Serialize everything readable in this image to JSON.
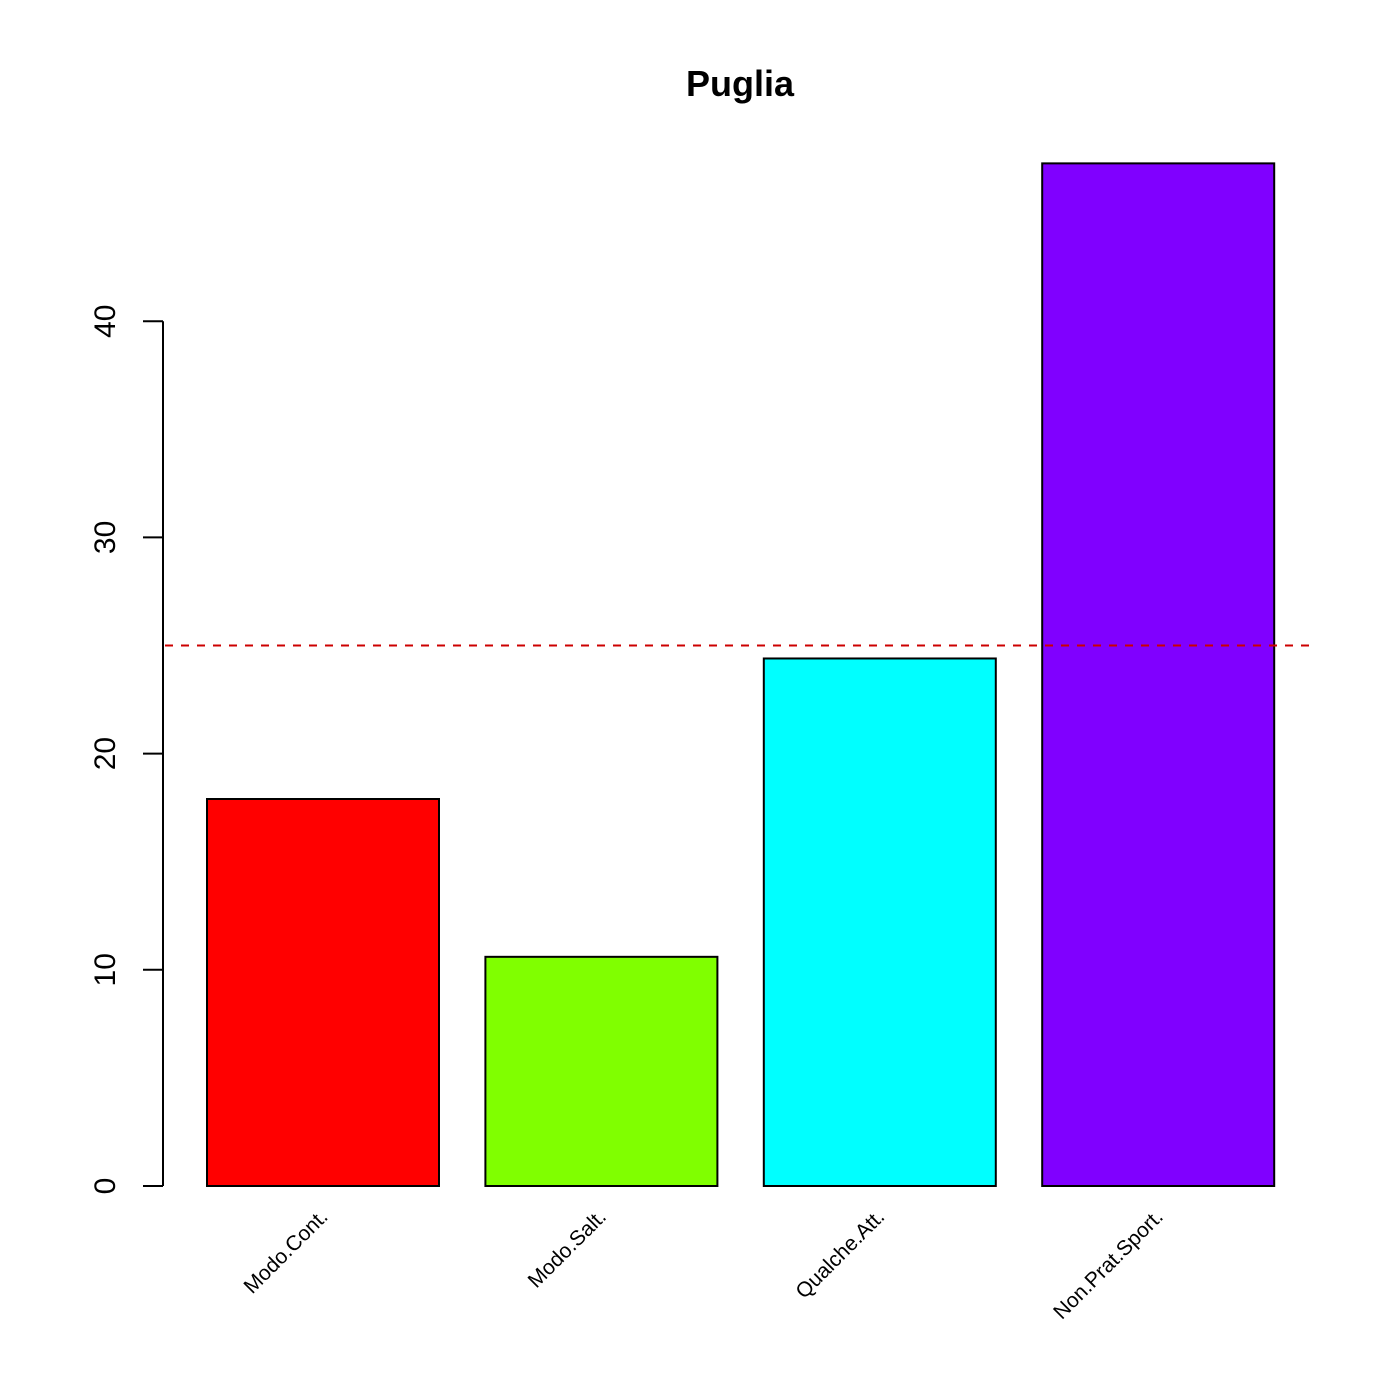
{
  "chart_data": {
    "type": "bar",
    "title": "Puglia",
    "xlabel": "",
    "ylabel": "",
    "categories": [
      "Modo.Cont.",
      "Modo.Salt.",
      "Qualche.Att.",
      "Non.Prat.Sport."
    ],
    "values": [
      17.9,
      10.6,
      24.4,
      47.3
    ],
    "colors": [
      "#FF0000",
      "#80FF00",
      "#00FFFF",
      "#8000FF"
    ],
    "ylim": [
      0,
      50
    ],
    "yticks": [
      0,
      10,
      20,
      30,
      40
    ],
    "reference_line": {
      "value": 25,
      "color": "#CC0000",
      "style": "dashed"
    },
    "grid": false,
    "legend": "none"
  }
}
